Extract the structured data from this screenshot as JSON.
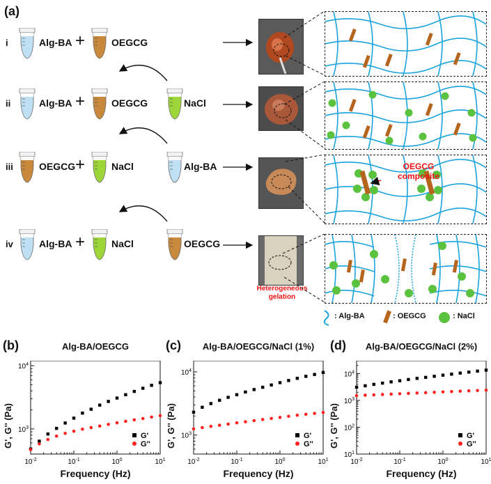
{
  "panel_a": {
    "label": "(a)",
    "rows": [
      {
        "roman": "i",
        "left": "Alg-BA",
        "plus": "+",
        "right": "OEGCG",
        "third": ""
      },
      {
        "roman": "ii",
        "left": "Alg-BA",
        "plus": "+",
        "right": "OEGCG",
        "third": "NaCl"
      },
      {
        "roman": "iii",
        "left": "OEGCG",
        "plus": "+",
        "right": "NaCl",
        "third": "Alg-BA"
      },
      {
        "roman": "iv",
        "left": "Alg-BA",
        "plus": "+",
        "right": "NaCl",
        "third": "OEGCG"
      }
    ],
    "annotation": "OEGCG composite",
    "photo_caption": "Heterogeneous gelation",
    "legend": {
      "alg": ": Alg-BA",
      "oegcg": ": OEGCG",
      "nacl": ": NaCl"
    },
    "colors": {
      "chain": "#1aa3dd",
      "rod": "#b5651d",
      "nacl": "#5bc23f",
      "tube_blue": "#bfe0f2",
      "tube_brown": "#c8893c",
      "tube_green": "#9ed63a"
    }
  },
  "panels": [
    {
      "label": "(b)",
      "title": "Alg-BA/OEGCG"
    },
    {
      "label": "(c)",
      "title": "Alg-BA/OEGCG/NaCl (1%)"
    },
    {
      "label": "(d)",
      "title": "Alg-BA/OEGCG/NaCl (2%)"
    }
  ],
  "ylabel": "G', G'' (Pa)",
  "xlabel": "Frequency (Hz)",
  "chart_data": [
    {
      "type": "scatter",
      "title": "Alg-BA/OEGCG",
      "xlabel": "Frequency (Hz)",
      "ylabel": "G', G'' (Pa)",
      "xscale": "log",
      "yscale": "log",
      "xlim": [
        0.01,
        10
      ],
      "ylim": [
        400,
        12000
      ],
      "yticks": [
        "10^3",
        "10^4"
      ],
      "xticks": [
        "10^-2",
        "10^-1",
        "10^0",
        "10^1"
      ],
      "legend_loc": "bottom-right",
      "series": [
        {
          "name": "G'",
          "marker": "square",
          "color": "#000000",
          "x": [
            0.01,
            0.01585,
            0.02512,
            0.03981,
            0.0631,
            0.1,
            0.1585,
            0.2512,
            0.3981,
            0.631,
            1,
            1.585,
            2.512,
            3.981,
            6.31,
            10
          ],
          "y": [
            480,
            640,
            830,
            1020,
            1240,
            1480,
            1780,
            2050,
            2380,
            2720,
            3080,
            3480,
            3920,
            4400,
            4900,
            5400
          ]
        },
        {
          "name": "G''",
          "marker": "circle",
          "color": "#ff2020",
          "x": [
            0.01,
            0.01585,
            0.02512,
            0.03981,
            0.0631,
            0.1,
            0.1585,
            0.2512,
            0.3981,
            0.631,
            1,
            1.585,
            2.512,
            3.981,
            6.31,
            10
          ],
          "y": [
            470,
            580,
            680,
            770,
            850,
            920,
            990,
            1050,
            1110,
            1180,
            1250,
            1320,
            1390,
            1460,
            1540,
            1620
          ]
        }
      ]
    },
    {
      "type": "scatter",
      "title": "Alg-BA/OEGCG/NaCl (1%)",
      "xlabel": "Frequency (Hz)",
      "ylabel": "G', G'' (Pa)",
      "xscale": "log",
      "yscale": "log",
      "xlim": [
        0.01,
        10
      ],
      "ylim": [
        500,
        15000
      ],
      "yticks": [
        "10^3",
        "10^4"
      ],
      "xticks": [
        "10^-2",
        "10^-1",
        "10^0",
        "10^1"
      ],
      "legend_loc": "bottom-right",
      "series": [
        {
          "name": "G'",
          "marker": "square",
          "color": "#000000",
          "x": [
            0.01,
            0.01585,
            0.02512,
            0.03981,
            0.0631,
            0.1,
            0.1585,
            0.2512,
            0.3981,
            0.631,
            1,
            1.585,
            2.512,
            3.981,
            6.31,
            10
          ],
          "y": [
            2300,
            2750,
            3150,
            3550,
            3950,
            4350,
            4800,
            5250,
            5700,
            6200,
            6750,
            7300,
            7900,
            8500,
            9100,
            9800
          ]
        },
        {
          "name": "G''",
          "marker": "circle",
          "color": "#ff2020",
          "x": [
            0.01,
            0.01585,
            0.02512,
            0.03981,
            0.0631,
            0.1,
            0.1585,
            0.2512,
            0.3981,
            0.631,
            1,
            1.585,
            2.512,
            3.981,
            6.31,
            10
          ],
          "y": [
            1250,
            1310,
            1370,
            1430,
            1490,
            1560,
            1620,
            1690,
            1760,
            1830,
            1900,
            1980,
            2060,
            2130,
            2200,
            2270
          ]
        }
      ]
    },
    {
      "type": "scatter",
      "title": "Alg-BA/OEGCG/NaCl (2%)",
      "xlabel": "Frequency (Hz)",
      "ylabel": "G', G'' (Pa)",
      "xscale": "log",
      "yscale": "log",
      "xlim": [
        0.01,
        10
      ],
      "ylim": [
        10,
        30000
      ],
      "yticks": [
        "10^1",
        "10^2",
        "10^3",
        "10^4"
      ],
      "xticks": [
        "10^-2",
        "10^-1",
        "10^0",
        "10^1"
      ],
      "legend_loc": "bottom-right",
      "series": [
        {
          "name": "G'",
          "marker": "square",
          "color": "#000000",
          "x": [
            0.01,
            0.01585,
            0.02512,
            0.03981,
            0.0631,
            0.1,
            0.1585,
            0.2512,
            0.3981,
            0.631,
            1,
            1.585,
            2.512,
            3.981,
            6.31,
            10
          ],
          "y": [
            3100,
            3500,
            3950,
            4400,
            4900,
            5400,
            6000,
            6600,
            7200,
            7900,
            8700,
            9500,
            10400,
            11300,
            12300,
            13400
          ]
        },
        {
          "name": "G''",
          "marker": "circle",
          "color": "#ff2020",
          "x": [
            0.01,
            0.01585,
            0.02512,
            0.03981,
            0.0631,
            0.1,
            0.1585,
            0.2512,
            0.3981,
            0.631,
            1,
            1.585,
            2.512,
            3.981,
            6.31,
            10
          ],
          "y": [
            1500,
            1560,
            1610,
            1660,
            1710,
            1770,
            1820,
            1880,
            1940,
            2000,
            2070,
            2130,
            2200,
            2270,
            2330,
            2400
          ]
        }
      ]
    }
  ]
}
